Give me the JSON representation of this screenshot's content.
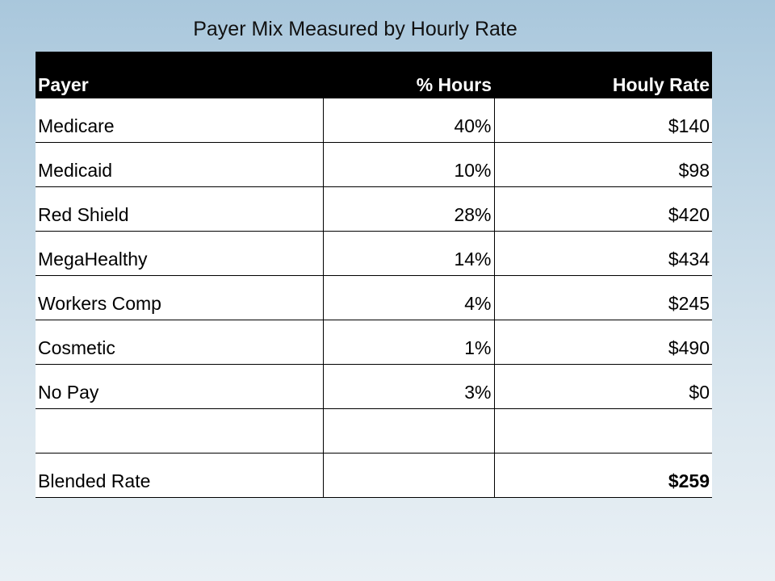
{
  "title": "Payer Mix Measured by Hourly Rate",
  "table": {
    "headers": [
      "Payer",
      "% Hours",
      "Houly Rate"
    ],
    "rows": [
      {
        "payer": "Medicare",
        "hours": "40%",
        "rate": "$140"
      },
      {
        "payer": "Medicaid",
        "hours": "10%",
        "rate": "$98"
      },
      {
        "payer": "Red Shield",
        "hours": "28%",
        "rate": "$420"
      },
      {
        "payer": "MegaHealthy",
        "hours": "14%",
        "rate": "$434"
      },
      {
        "payer": "Workers Comp",
        "hours": "4%",
        "rate": "$245"
      },
      {
        "payer": "Cosmetic",
        "hours": "1%",
        "rate": "$490"
      },
      {
        "payer": "No Pay",
        "hours": "3%",
        "rate": "$0"
      },
      {
        "payer": "",
        "hours": "",
        "rate": ""
      },
      {
        "payer": "Blended Rate",
        "hours": "",
        "rate": "$259"
      }
    ]
  }
}
